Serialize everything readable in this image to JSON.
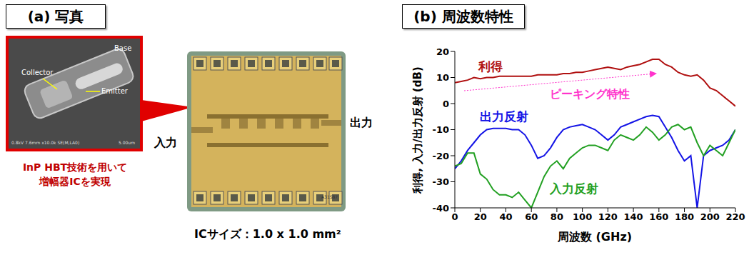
{
  "photo_panel": {
    "title": "(a) 写真",
    "sem_labels": [
      "Collector",
      "Base",
      "Emitter"
    ],
    "sem_caption": "0.8kV 7.6mm x10.0k SE(M,LA0)",
    "sem_scale": "5.00um",
    "caption_lines": [
      "InP HBT技術を用いて",
      "増幅器ICを実現"
    ],
    "ic_input": "入力",
    "ic_output": "出力",
    "chip_mark": "A31S87",
    "ic_size": "ICサイズ：1.0 x 1.0 mm²"
  },
  "chart_data": {
    "type": "line",
    "title": "(b) 周波数特性",
    "x_label": "周波数 (GHz)",
    "y_label": "利得, 入力/出力反射 (dB)",
    "annotations": [
      "ピーキング特性"
    ],
    "grid": false,
    "xlim": [
      0,
      220
    ],
    "xticks": [
      0,
      20,
      40,
      60,
      80,
      100,
      120,
      140,
      160,
      180,
      200,
      220
    ],
    "ylim": [
      -40,
      20
    ],
    "yticks": [
      -40,
      -30,
      -20,
      -10,
      0,
      10,
      20
    ],
    "x": [
      0,
      5,
      10,
      15,
      20,
      25,
      30,
      35,
      40,
      45,
      50,
      55,
      60,
      65,
      70,
      75,
      80,
      85,
      90,
      95,
      100,
      105,
      110,
      115,
      120,
      125,
      130,
      135,
      140,
      145,
      150,
      155,
      160,
      165,
      170,
      175,
      180,
      185,
      190,
      195,
      200,
      205,
      210,
      215,
      220
    ],
    "series": [
      {
        "name": "利得",
        "color": "#b01010",
        "values": [
          8,
          8.5,
          9,
          10,
          9.5,
          10,
          10,
          10.5,
          10.5,
          10.5,
          10.5,
          10.5,
          10.5,
          11,
          11,
          11,
          11,
          11.5,
          11.5,
          12,
          12,
          12.5,
          13,
          13.5,
          14,
          13.5,
          13,
          14,
          14.5,
          15,
          16,
          17,
          17,
          15,
          14,
          12,
          11,
          10.5,
          11,
          9,
          6,
          5,
          3,
          1,
          -1
        ]
      },
      {
        "name": "出力反射",
        "color": "#1414e6",
        "values": [
          -25,
          -22,
          -18,
          -15,
          -12,
          -10,
          -9.5,
          -9.5,
          -9.5,
          -10,
          -10,
          -12,
          -16,
          -21,
          -20,
          -17,
          -13,
          -10,
          -9,
          -8.5,
          -8,
          -9,
          -10,
          -12,
          -14,
          -12,
          -9,
          -8,
          -7,
          -6,
          -5,
          -4.5,
          -5,
          -9,
          -13,
          -18,
          -22,
          -20,
          -40,
          -20,
          -18,
          -17,
          -16,
          -14,
          -10
        ]
      },
      {
        "name": "入力反射",
        "color": "#22a022",
        "values": [
          -24,
          -23,
          -19,
          -19,
          -27,
          -29,
          -33,
          -35,
          -35,
          -36,
          -34,
          -37,
          -40,
          -34,
          -28,
          -24,
          -22,
          -25,
          -21,
          -19,
          -17,
          -16,
          -16,
          -17,
          -18,
          -14,
          -12,
          -13,
          -14,
          -12,
          -9,
          -11,
          -14,
          -12,
          -9,
          -8,
          -10,
          -9,
          -15,
          -20,
          -16,
          -18,
          -20,
          -15,
          -10
        ]
      }
    ]
  }
}
